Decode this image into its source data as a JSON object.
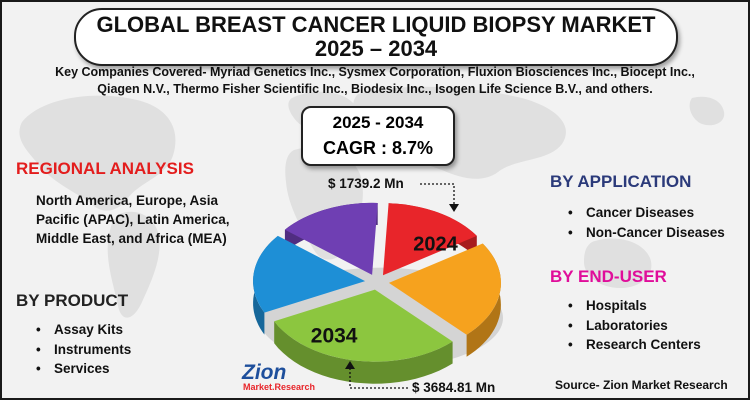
{
  "title": {
    "line1": "GLOBAL BREAST CANCER LIQUID BIOPSY MARKET",
    "line2": "2025 – 2034"
  },
  "companies": {
    "line1": "Key Companies Covered- Myriad Genetics Inc., Sysmex Corporation, Fluxion Biosciences Inc., Biocept Inc.,",
    "line2": "Qiagen N.V., Thermo Fisher Scientific Inc., Biodesix Inc., Isogen Life Science B.V., and others."
  },
  "forecast": {
    "period": "2025 - 2034",
    "cagr": "CAGR : 8.7%"
  },
  "regional": {
    "heading": "REGIONAL ANALYSIS",
    "text": "North America, Europe, Asia Pacific (APAC), Latin America, Middle East, and Africa (MEA)"
  },
  "product": {
    "heading": "BY PRODUCT",
    "items": [
      "Assay Kits",
      "Instruments",
      "Services"
    ]
  },
  "application": {
    "heading": "BY APPLICATION",
    "items": [
      "Cancer Diseases",
      "Non-Cancer Diseases"
    ]
  },
  "end_user": {
    "heading": "BY END-USER",
    "items": [
      "Hospitals",
      "Laboratories",
      "Research Centers"
    ]
  },
  "chart_data": {
    "type": "pie",
    "style": "3d-exploded",
    "labels": [
      {
        "year": "2024",
        "value_label": "$ 1739.2 Mn",
        "value": 1739.2,
        "unit": "USD Mn"
      },
      {
        "year": "2034",
        "value_label": "$ 3684.81 Mn",
        "value": 3684.81,
        "unit": "USD Mn"
      }
    ],
    "slices": [
      {
        "color": "#e8252a",
        "share": 0.15
      },
      {
        "color": "#f6a21e",
        "share": 0.22
      },
      {
        "color": "#8cc63f",
        "share": 0.3
      },
      {
        "color": "#1e8fd6",
        "share": 0.18
      },
      {
        "color": "#6f3fb3",
        "share": 0.15
      }
    ],
    "year_label_2024_index": 0,
    "year_label_2034_index": 1
  },
  "logo": {
    "name": "Zion",
    "tagline": "Market.Research"
  },
  "source": "Source- Zion Market Research",
  "colors": {
    "regional_heading": "#e31d1d",
    "application_heading": "#2b3a7a",
    "enduser_heading": "#e00d9a",
    "background": "#f2f2f2"
  }
}
